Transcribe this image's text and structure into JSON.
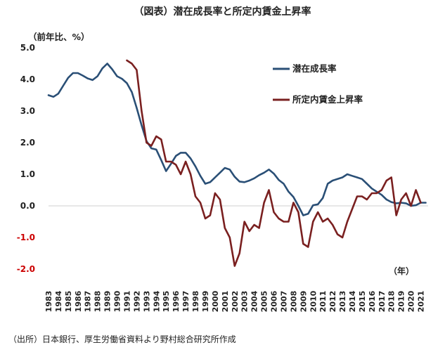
{
  "chart_data": {
    "type": "line",
    "title": "（図表）潜在成長率と所定内賃金上昇率",
    "ylabel": "（前年比、%）",
    "xlabel": "（年）",
    "ylim": [
      -2.0,
      5.0
    ],
    "xlim": [
      1983,
      2021.75
    ],
    "yticks": [
      "5.0",
      "4.0",
      "3.0",
      "2.0",
      "1.0",
      "0.0",
      "-1.0",
      "-2.0"
    ],
    "ytick_values": [
      5,
      4,
      3,
      2,
      1,
      0,
      -1,
      -2
    ],
    "xticks": [
      "1983",
      "1984",
      "1985",
      "1986",
      "1987",
      "1988",
      "1989",
      "1990",
      "1991",
      "1992",
      "1993",
      "1994",
      "1995",
      "1996",
      "1997",
      "1998",
      "1999",
      "2000",
      "2001",
      "2002",
      "2003",
      "2004",
      "2005",
      "2006",
      "2007",
      "2008",
      "2009",
      "2010",
      "2011",
      "2012",
      "2013",
      "2014",
      "2015",
      "2016",
      "2017",
      "2018",
      "2019",
      "2020",
      "2021"
    ],
    "legend_position": "top-right",
    "series": [
      {
        "name": "潜在成長率",
        "color": "#2a4f76",
        "x": [
          1983,
          1983.5,
          1984,
          1984.5,
          1985,
          1985.5,
          1986,
          1986.5,
          1987,
          1987.5,
          1988,
          1988.5,
          1989,
          1989.5,
          1990,
          1990.5,
          1991,
          1991.5,
          1992,
          1992.5,
          1993,
          1993.5,
          1994,
          1994.5,
          1995,
          1995.5,
          1996,
          1996.5,
          1997,
          1997.5,
          1998,
          1998.5,
          1999,
          1999.5,
          2000,
          2000.5,
          2001,
          2001.5,
          2002,
          2002.5,
          2003,
          2003.5,
          2004,
          2004.5,
          2005,
          2005.5,
          2006,
          2006.5,
          2007,
          2007.5,
          2008,
          2008.5,
          2009,
          2009.5,
          2010,
          2010.5,
          2011,
          2011.5,
          2012,
          2012.5,
          2013,
          2013.5,
          2014,
          2014.5,
          2015,
          2015.5,
          2016,
          2016.5,
          2017,
          2017.5,
          2018,
          2018.5,
          2019,
          2019.5,
          2020,
          2020.5,
          2021,
          2021.5
        ],
        "values": [
          3.5,
          3.45,
          3.55,
          3.8,
          4.05,
          4.2,
          4.2,
          4.12,
          4.03,
          3.98,
          4.1,
          4.35,
          4.5,
          4.32,
          4.1,
          4.02,
          3.88,
          3.6,
          3.1,
          2.55,
          2.05,
          1.82,
          1.78,
          1.45,
          1.1,
          1.33,
          1.58,
          1.68,
          1.68,
          1.5,
          1.25,
          0.95,
          0.7,
          0.75,
          0.9,
          1.05,
          1.2,
          1.15,
          0.92,
          0.77,
          0.75,
          0.8,
          0.87,
          0.97,
          1.05,
          1.15,
          1.02,
          0.82,
          0.7,
          0.45,
          0.28,
          0.0,
          -0.3,
          -0.25,
          0.02,
          0.05,
          0.25,
          0.7,
          0.8,
          0.85,
          0.9,
          1.0,
          0.95,
          0.9,
          0.85,
          0.7,
          0.55,
          0.45,
          0.35,
          0.2,
          0.12,
          0.08,
          0.1,
          0.08,
          0.0,
          0.02,
          0.1,
          0.1
        ]
      },
      {
        "name": "所定内賃金上昇率",
        "color": "#7a2020",
        "x": [
          1991,
          1991.5,
          1992,
          1992.5,
          1993,
          1993.5,
          1994,
          1994.5,
          1995,
          1995.5,
          1996,
          1996.5,
          1997,
          1997.5,
          1998,
          1998.5,
          1999,
          1999.5,
          2000,
          2000.5,
          2001,
          2001.5,
          2002,
          2002.5,
          2003,
          2003.5,
          2004,
          2004.5,
          2005,
          2005.5,
          2006,
          2006.5,
          2007,
          2007.5,
          2008,
          2008.5,
          2009,
          2009.5,
          2010,
          2010.5,
          2011,
          2011.5,
          2012,
          2012.5,
          2013,
          2013.5,
          2014,
          2014.5,
          2015,
          2015.5,
          2016,
          2016.5,
          2017,
          2017.5,
          2018,
          2018.5,
          2019,
          2019.5,
          2020,
          2020.5,
          2021
        ],
        "values": [
          4.6,
          4.5,
          4.3,
          3.0,
          2.0,
          1.9,
          2.2,
          2.1,
          1.4,
          1.4,
          1.3,
          1.0,
          1.4,
          1.0,
          0.3,
          0.1,
          -0.4,
          -0.3,
          0.4,
          0.2,
          -0.7,
          -1.0,
          -1.9,
          -1.5,
          -0.5,
          -0.8,
          -0.6,
          -0.7,
          0.1,
          0.5,
          -0.2,
          -0.4,
          -0.5,
          -0.5,
          0.1,
          -0.2,
          -1.2,
          -1.3,
          -0.5,
          -0.2,
          -0.5,
          -0.4,
          -0.6,
          -0.9,
          -1.0,
          -0.5,
          -0.1,
          0.3,
          0.3,
          0.2,
          0.4,
          0.4,
          0.5,
          0.8,
          0.9,
          -0.3,
          0.2,
          0.4,
          0.0,
          0.5,
          0.1
        ]
      }
    ]
  },
  "source_note": "（出所）日本銀行、厚生労働省資料より野村総合研究所作成"
}
